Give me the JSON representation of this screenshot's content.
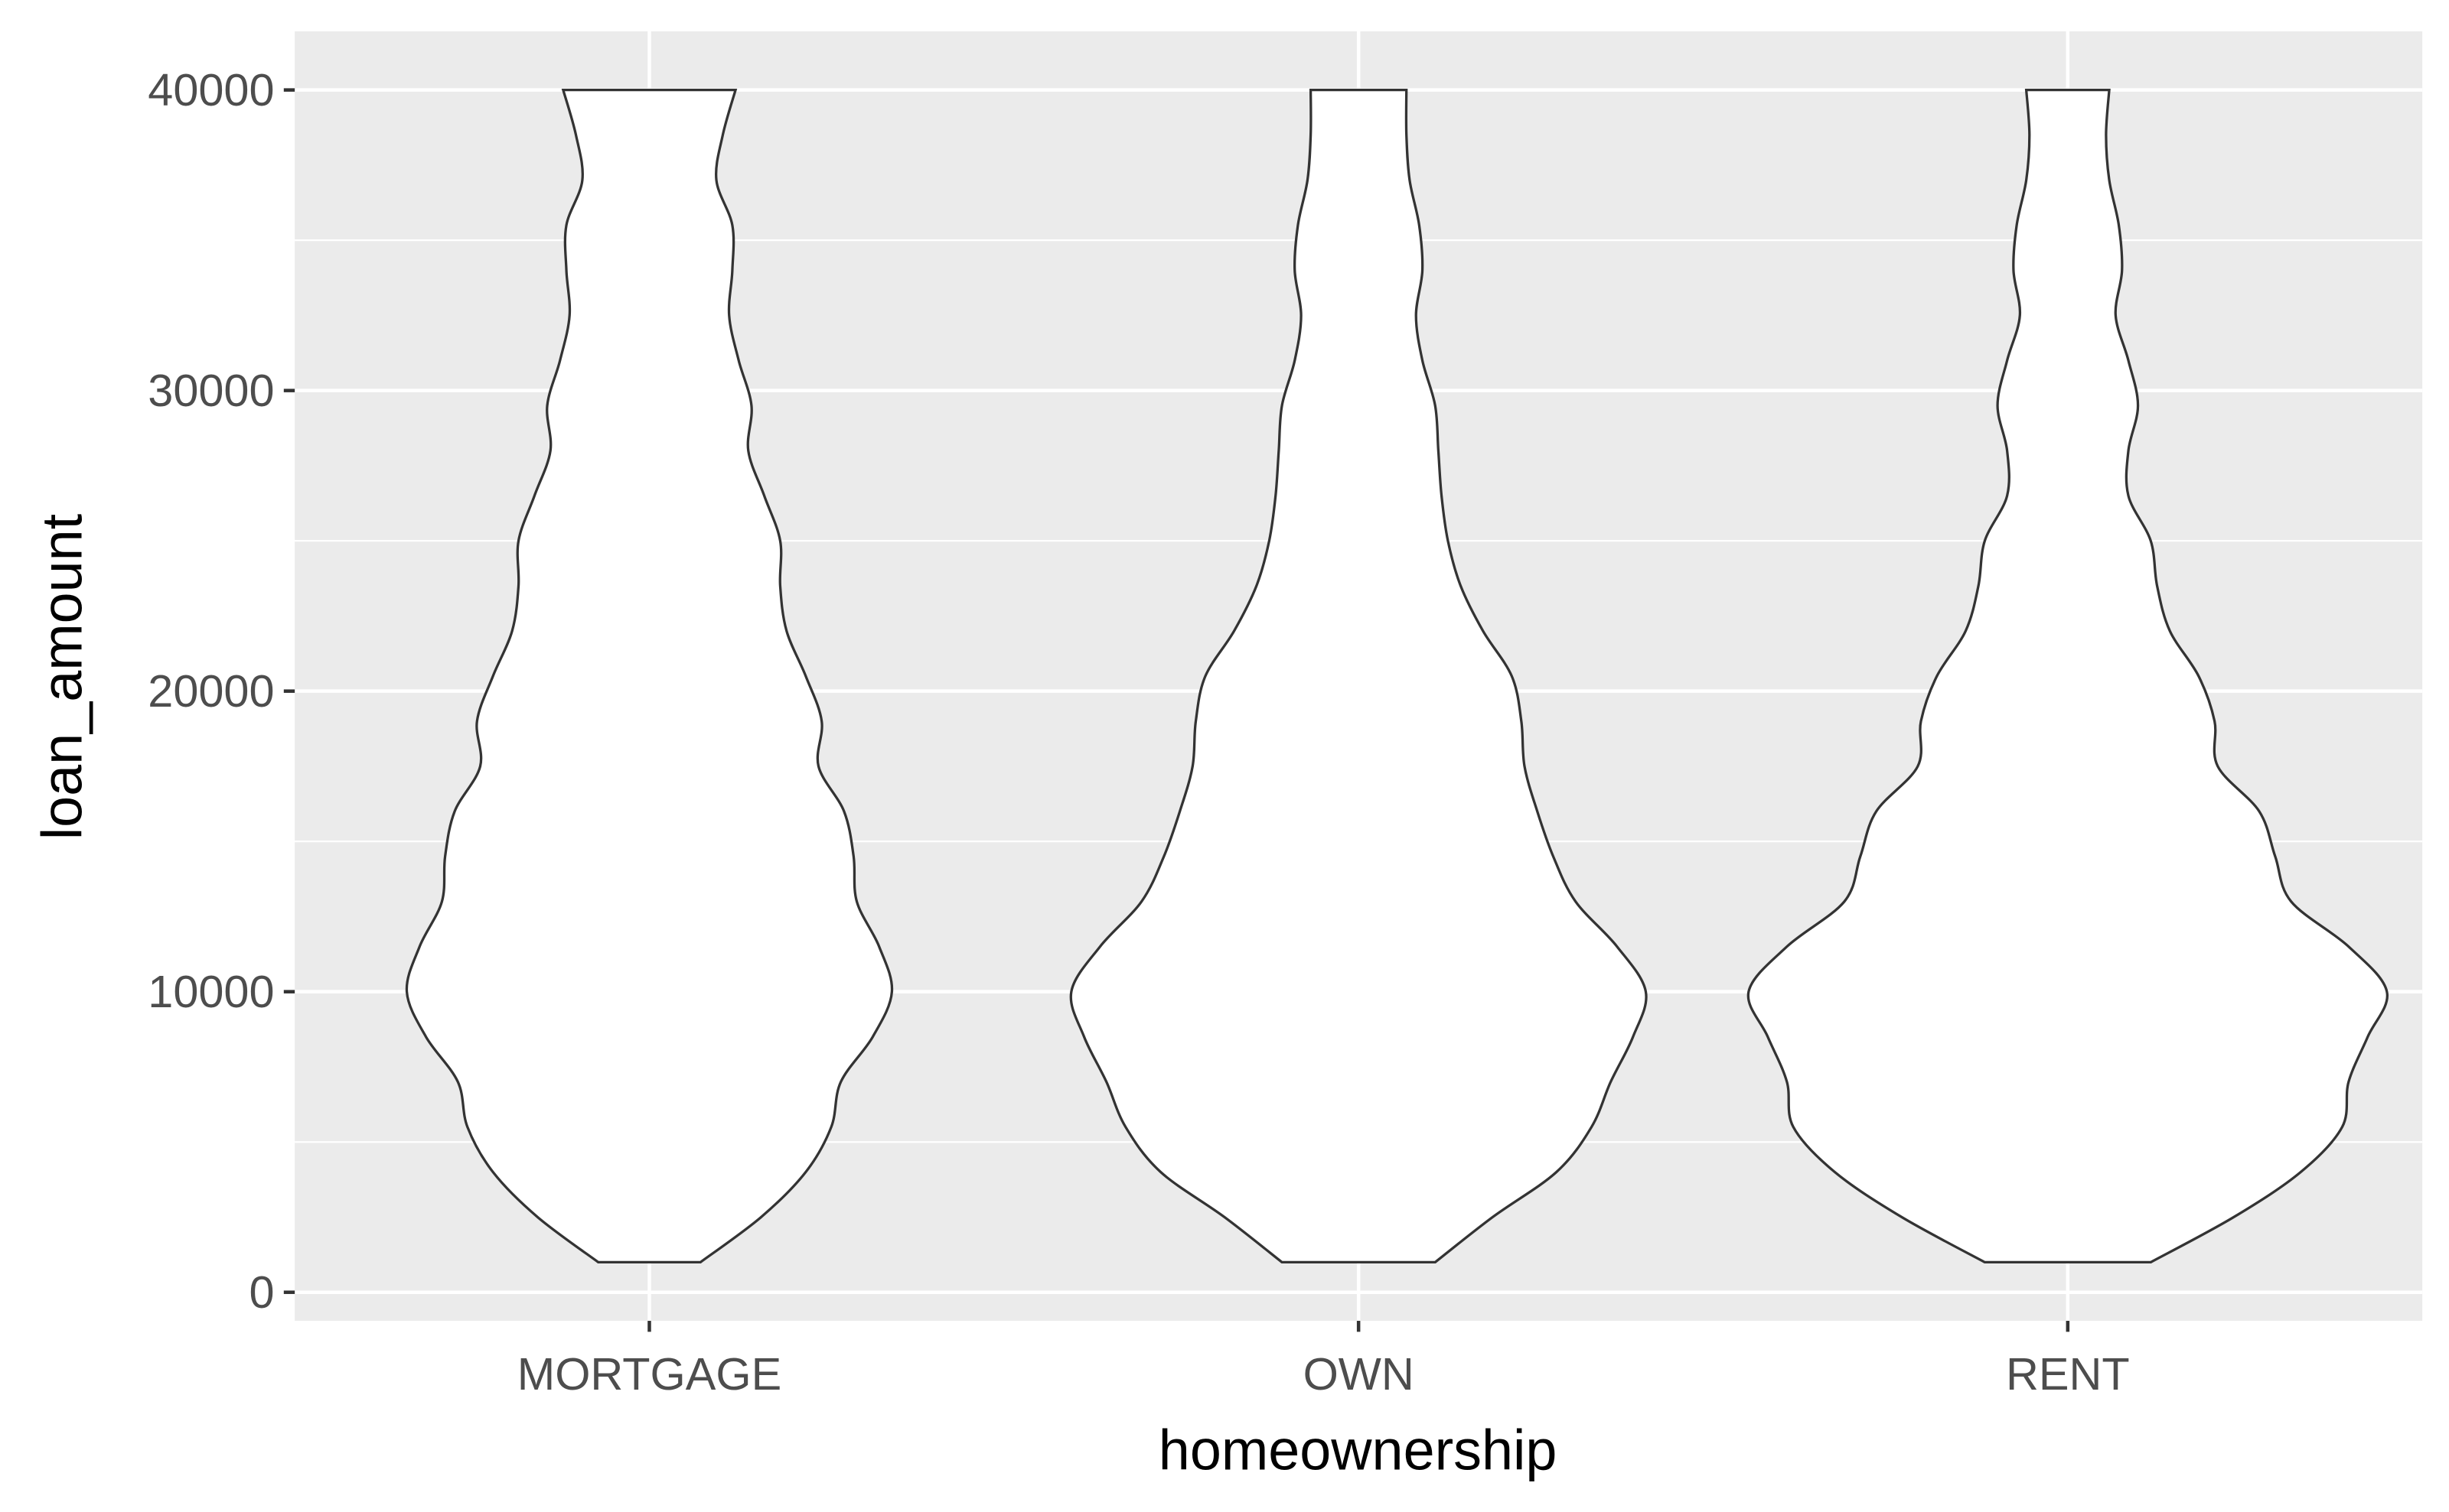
{
  "chart_data": {
    "type": "violin",
    "x_label": "homeownership",
    "y_label": "loan_amount",
    "categories": [
      "MORTGAGE",
      "OWN",
      "RENT"
    ],
    "y": [
      1000,
      2500,
      4000,
      5500,
      7000,
      8500,
      10000,
      11500,
      13000,
      14500,
      16000,
      17500,
      19000,
      20500,
      22000,
      23500,
      25000,
      26500,
      28000,
      29500,
      31000,
      32500,
      34000,
      35500,
      37000,
      38500,
      40000
    ],
    "densities": [
      [
        0.16,
        0.35,
        0.49,
        0.57,
        0.6,
        0.7,
        0.76,
        0.72,
        0.65,
        0.64,
        0.61,
        0.53,
        0.54,
        0.49,
        0.43,
        0.41,
        0.41,
        0.36,
        0.31,
        0.32,
        0.28,
        0.25,
        0.26,
        0.26,
        0.21,
        0.23,
        0.27
      ],
      [
        0.24,
        0.42,
        0.62,
        0.73,
        0.79,
        0.86,
        0.9,
        0.81,
        0.68,
        0.61,
        0.56,
        0.52,
        0.51,
        0.48,
        0.39,
        0.32,
        0.28,
        0.26,
        0.25,
        0.24,
        0.2,
        0.18,
        0.2,
        0.19,
        0.16,
        0.15,
        0.15
      ],
      [
        0.26,
        0.52,
        0.73,
        0.86,
        0.88,
        0.94,
        1.0,
        0.88,
        0.7,
        0.65,
        0.6,
        0.47,
        0.46,
        0.41,
        0.32,
        0.28,
        0.26,
        0.19,
        0.19,
        0.22,
        0.19,
        0.15,
        0.17,
        0.16,
        0.13,
        0.12,
        0.13
      ]
    ],
    "fill": "#ffffff",
    "outline": "#333333",
    "panel_color": "#ebebeb",
    "ylim": [
      -950,
      41950
    ],
    "yticks": [
      0,
      10000,
      20000,
      30000,
      40000
    ],
    "yminor": [
      5000,
      15000,
      25000,
      35000
    ],
    "grid": true
  }
}
